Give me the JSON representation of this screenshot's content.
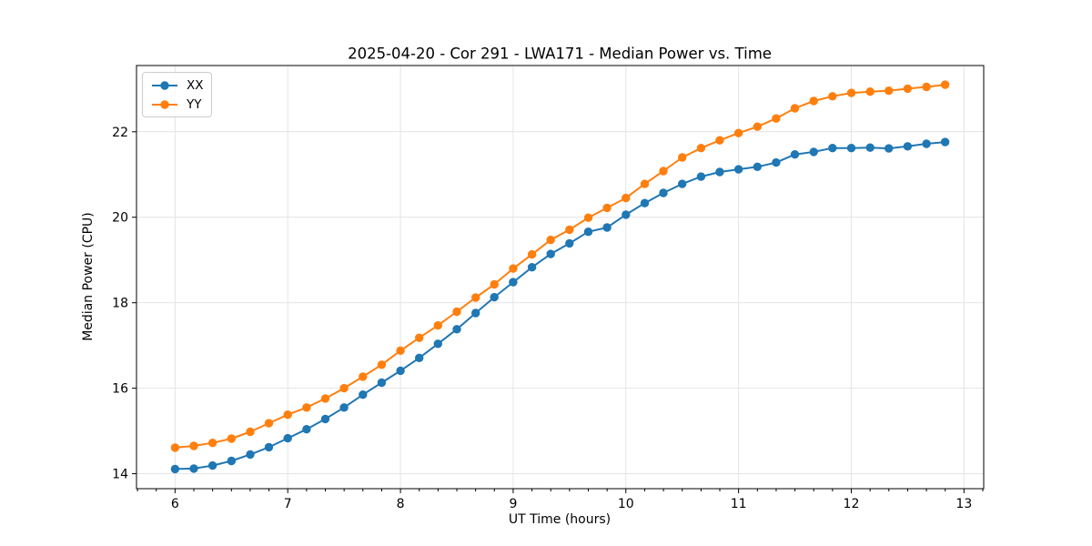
{
  "chart_data": {
    "type": "line",
    "title": "2025-04-20 - Cor 291 - LWA171 - Median Power vs. Time",
    "xlabel": "UT Time (hours)",
    "ylabel": "Median Power (CPU)",
    "xlim": [
      5.658,
      13.175
    ],
    "ylim": [
      13.65,
      23.55
    ],
    "xticks": [
      6,
      7,
      8,
      9,
      10,
      11,
      12,
      13
    ],
    "yticks": [
      14,
      16,
      18,
      20,
      22
    ],
    "x_minor_step": 0.16667,
    "grid": "major",
    "grid_color": "#e4e4e4",
    "spine_color": "#000000",
    "legend_position": "upper-left",
    "x": [
      6.0,
      6.167,
      6.333,
      6.5,
      6.667,
      6.833,
      7.0,
      7.167,
      7.333,
      7.5,
      7.667,
      7.833,
      8.0,
      8.167,
      8.333,
      8.5,
      8.667,
      8.833,
      9.0,
      9.167,
      9.333,
      9.5,
      9.667,
      9.833,
      10.0,
      10.167,
      10.333,
      10.5,
      10.667,
      10.833,
      11.0,
      11.167,
      11.333,
      11.5,
      11.667,
      11.833,
      12.0,
      12.167,
      12.333,
      12.5,
      12.667,
      12.833
    ],
    "series": [
      {
        "name": "XX",
        "color": "#1f77b4",
        "values": [
          14.11,
          14.12,
          14.19,
          14.3,
          14.45,
          14.62,
          14.83,
          15.04,
          15.28,
          15.55,
          15.85,
          16.13,
          16.41,
          16.71,
          17.04,
          17.38,
          17.76,
          18.13,
          18.48,
          18.83,
          19.14,
          19.39,
          19.66,
          19.76,
          20.06,
          20.33,
          20.57,
          20.78,
          20.95,
          21.06,
          21.12,
          21.18,
          21.28,
          21.47,
          21.53,
          21.62,
          21.62,
          21.63,
          21.61,
          21.66,
          21.72,
          21.76
        ]
      },
      {
        "name": "YY",
        "color": "#ff7f0e",
        "values": [
          14.61,
          14.65,
          14.72,
          14.82,
          14.98,
          15.18,
          15.38,
          15.55,
          15.76,
          16.0,
          16.27,
          16.55,
          16.88,
          17.18,
          17.47,
          17.79,
          18.12,
          18.43,
          18.8,
          19.13,
          19.47,
          19.71,
          19.99,
          20.22,
          20.45,
          20.78,
          21.08,
          21.4,
          21.62,
          21.8,
          21.97,
          22.12,
          22.31,
          22.55,
          22.72,
          22.83,
          22.91,
          22.94,
          22.96,
          23.01,
          23.05,
          23.1
        ]
      }
    ]
  }
}
